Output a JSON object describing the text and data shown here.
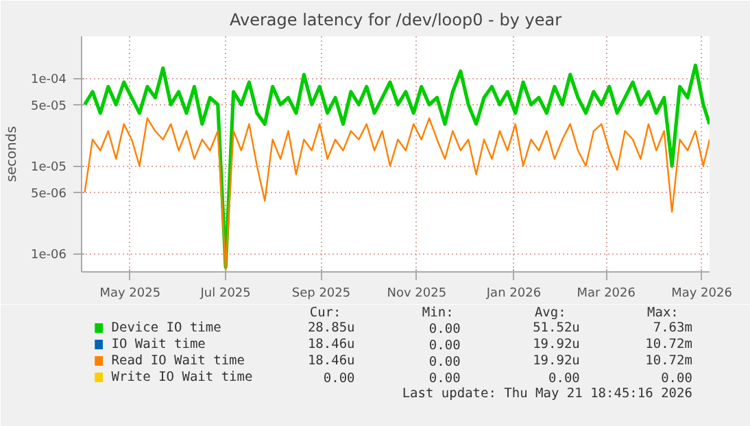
{
  "chart_data": {
    "type": "line",
    "title": "Average latency for /dev/loop0 - by year",
    "ylabel": "seconds",
    "log": "y",
    "grid": true,
    "legend": "bottom",
    "marker": "none",
    "line_style": "solid",
    "xlim": [
      "2025-04-15",
      "2026-05-21"
    ],
    "xticks": [
      {
        "value": "2025-05-16",
        "label": "May 2025"
      },
      {
        "value": "2025-07-16",
        "label": "Jul 2025"
      },
      {
        "value": "2025-09-15",
        "label": "Sep 2025"
      },
      {
        "value": "2025-11-15",
        "label": "Nov 2025"
      },
      {
        "value": "2026-01-16",
        "label": "Jan 2026"
      },
      {
        "value": "2026-03-16",
        "label": "Mar 2026"
      },
      {
        "value": "2026-05-16",
        "label": "May 2026"
      }
    ],
    "ylim": [
      6.2e-07,
      0.0003
    ],
    "yticks": [
      {
        "value": 1e-06,
        "label": "1e-06"
      },
      {
        "value": 5e-06,
        "label": "5e-06"
      },
      {
        "value": 1e-05,
        "label": "1e-05"
      },
      {
        "value": 5e-05,
        "label": "5e-05"
      },
      {
        "value": 0.0001,
        "label": "1e-04"
      }
    ],
    "x": [
      "2025-04-17",
      "2025-04-22",
      "2025-04-27",
      "2025-05-02",
      "2025-05-07",
      "2025-05-12",
      "2025-05-17",
      "2025-05-22",
      "2025-05-27",
      "2025-06-01",
      "2025-06-06",
      "2025-06-11",
      "2025-06-16",
      "2025-06-21",
      "2025-06-26",
      "2025-07-01",
      "2025-07-06",
      "2025-07-11",
      "2025-07-16",
      "2025-07-21",
      "2025-07-26",
      "2025-07-31",
      "2025-08-05",
      "2025-08-10",
      "2025-08-15",
      "2025-08-20",
      "2025-08-25",
      "2025-08-30",
      "2025-09-04",
      "2025-09-09",
      "2025-09-14",
      "2025-09-19",
      "2025-09-24",
      "2025-09-29",
      "2025-10-04",
      "2025-10-09",
      "2025-10-14",
      "2025-10-19",
      "2025-10-24",
      "2025-10-29",
      "2025-11-03",
      "2025-11-08",
      "2025-11-13",
      "2025-11-18",
      "2025-11-23",
      "2025-11-28",
      "2025-12-03",
      "2025-12-08",
      "2025-12-13",
      "2025-12-18",
      "2025-12-23",
      "2025-12-28",
      "2026-01-02",
      "2026-01-07",
      "2026-01-12",
      "2026-01-17",
      "2026-01-22",
      "2026-01-27",
      "2026-02-01",
      "2026-02-06",
      "2026-02-11",
      "2026-02-16",
      "2026-02-21",
      "2026-02-26",
      "2026-03-03",
      "2026-03-08",
      "2026-03-13",
      "2026-03-18",
      "2026-03-23",
      "2026-03-28",
      "2026-04-02",
      "2026-04-07",
      "2026-04-12",
      "2026-04-17",
      "2026-04-22",
      "2026-04-27",
      "2026-05-02",
      "2026-05-07",
      "2026-05-12",
      "2026-05-17",
      "2026-05-21"
    ],
    "series": [
      {
        "name": "Device IO time",
        "color": "#00cc00",
        "values": [
          5e-05,
          7e-05,
          4e-05,
          8e-05,
          5e-05,
          9e-05,
          6e-05,
          4e-05,
          8e-05,
          6e-05,
          0.00013,
          5e-05,
          7e-05,
          4e-05,
          8e-05,
          3e-05,
          6e-05,
          5e-05,
          7e-07,
          7e-05,
          5e-05,
          9e-05,
          4e-05,
          3e-05,
          8e-05,
          5e-05,
          6e-05,
          4e-05,
          0.00011,
          5e-05,
          8e-05,
          4e-05,
          6e-05,
          3e-05,
          7e-05,
          5e-05,
          8e-05,
          4e-05,
          6e-05,
          9e-05,
          5e-05,
          7e-05,
          4e-05,
          8e-05,
          5e-05,
          6e-05,
          3e-05,
          7e-05,
          0.00012,
          5e-05,
          3e-05,
          6e-05,
          8e-05,
          5e-05,
          7e-05,
          4e-05,
          9e-05,
          5e-05,
          6e-05,
          4e-05,
          8e-05,
          5e-05,
          0.00011,
          6e-05,
          4e-05,
          7e-05,
          5e-05,
          8e-05,
          4e-05,
          6e-05,
          9e-05,
          5e-05,
          7e-05,
          4e-05,
          6e-05,
          1e-05,
          8e-05,
          6e-05,
          0.00014,
          5e-05,
          3e-05
        ]
      },
      {
        "name": "IO Wait time",
        "color": "#0066b3",
        "values": [
          null,
          null,
          null,
          null,
          null,
          null,
          null,
          null,
          null,
          null,
          null,
          null,
          null,
          null,
          null,
          null,
          null,
          null,
          null,
          null,
          null,
          null,
          null,
          null,
          null,
          null,
          null,
          null,
          null,
          null,
          null,
          null,
          null,
          null,
          null,
          null,
          null,
          null,
          null,
          null,
          null,
          null,
          null,
          null,
          null,
          null,
          null,
          null,
          null,
          null,
          null,
          null,
          null,
          null,
          null,
          null,
          null,
          null,
          null,
          null,
          null,
          null,
          null,
          null,
          null,
          null,
          null,
          null,
          null,
          null,
          null,
          null,
          null,
          null,
          null,
          null,
          null,
          null,
          null,
          null,
          null
        ]
      },
      {
        "name": "Read IO Wait time",
        "color": "#ff8000",
        "values": [
          5e-06,
          2e-05,
          1.5e-05,
          2.5e-05,
          1.2e-05,
          3e-05,
          2e-05,
          1e-05,
          3.5e-05,
          2.5e-05,
          2e-05,
          3e-05,
          1.5e-05,
          2.5e-05,
          1.2e-05,
          2e-05,
          1.5e-05,
          2.5e-05,
          6.5e-07,
          2.5e-05,
          1.5e-05,
          3e-05,
          1e-05,
          4e-06,
          2e-05,
          1.2e-05,
          2.5e-05,
          8e-06,
          2e-05,
          1.5e-05,
          3e-05,
          1.2e-05,
          2e-05,
          1.5e-05,
          2.5e-05,
          2e-05,
          3e-05,
          1.5e-05,
          2.5e-05,
          1e-05,
          2e-05,
          1.5e-05,
          3e-05,
          2e-05,
          3.5e-05,
          2e-05,
          1.2e-05,
          2.5e-05,
          1.5e-05,
          2e-05,
          8e-06,
          2e-05,
          1.2e-05,
          2.5e-05,
          1.5e-05,
          3e-05,
          1e-05,
          2e-05,
          1.5e-05,
          2.5e-05,
          1.2e-05,
          2e-05,
          3e-05,
          1.5e-05,
          1e-05,
          2.5e-05,
          3e-05,
          1.5e-05,
          9e-06,
          2.5e-05,
          2e-05,
          1.2e-05,
          3e-05,
          1.5e-05,
          2.5e-05,
          3e-06,
          2e-05,
          1.5e-05,
          2.5e-05,
          1e-05,
          2e-05
        ]
      },
      {
        "name": "Write IO Wait time",
        "color": "#ffcc00",
        "values": [
          null,
          null,
          null,
          null,
          null,
          null,
          null,
          null,
          null,
          null,
          null,
          null,
          null,
          null,
          null,
          null,
          null,
          null,
          null,
          null,
          null,
          null,
          null,
          null,
          null,
          null,
          null,
          null,
          null,
          null,
          null,
          null,
          null,
          null,
          null,
          null,
          null,
          null,
          null,
          null,
          null,
          null,
          null,
          null,
          null,
          null,
          null,
          null,
          null,
          null,
          null,
          null,
          null,
          null,
          null,
          null,
          null,
          null,
          null,
          null,
          null,
          null,
          null,
          null,
          null,
          null,
          null,
          null,
          null,
          null,
          null,
          null,
          null,
          null,
          null,
          null,
          null,
          null,
          null,
          null,
          null
        ]
      }
    ],
    "annotations": [
      "Cur:",
      "Min:",
      "Avg:",
      "Max:",
      "28.85u",
      "0.00",
      "51.52u",
      "7.63m",
      "18.46u",
      "0.00",
      "19.92u",
      "10.72m",
      "18.46u",
      "0.00",
      "19.92u",
      "10.72m",
      "0.00",
      "0.00",
      "0.00",
      "0.00",
      "Last update: Thu May 21 18:45:16 2026"
    ]
  }
}
